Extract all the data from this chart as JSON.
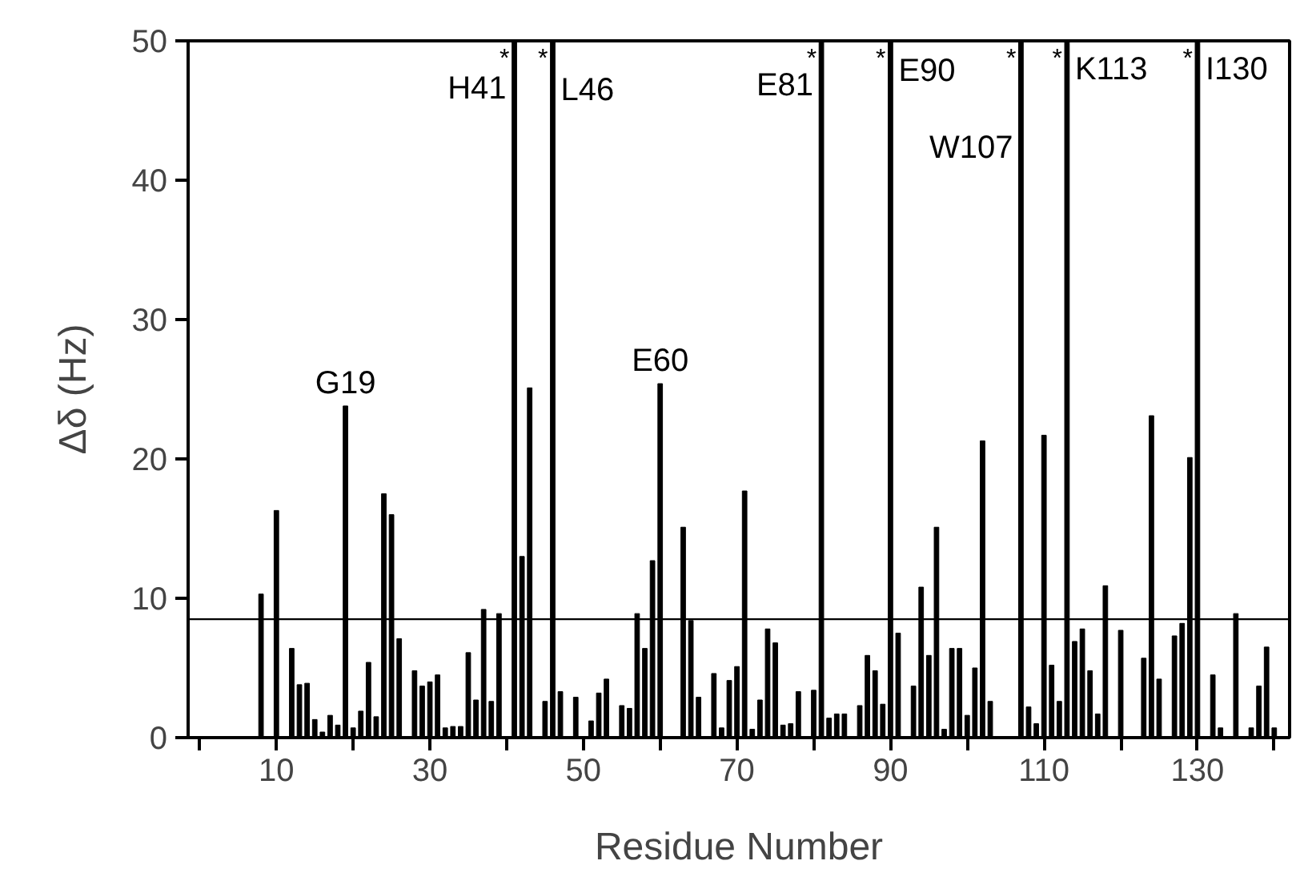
{
  "chart_data": {
    "type": "bar",
    "xlabel": "Residue Number",
    "ylabel": "Δδ (Hz)",
    "x": [
      8,
      10,
      12,
      13,
      14,
      15,
      16,
      17,
      18,
      19,
      20,
      21,
      22,
      23,
      24,
      25,
      26,
      28,
      29,
      30,
      31,
      32,
      33,
      34,
      35,
      36,
      37,
      38,
      39,
      41,
      42,
      43,
      45,
      46,
      47,
      49,
      51,
      52,
      53,
      55,
      56,
      57,
      58,
      59,
      60,
      63,
      64,
      65,
      67,
      68,
      69,
      70,
      71,
      72,
      73,
      74,
      75,
      76,
      77,
      78,
      80,
      81,
      82,
      83,
      84,
      86,
      87,
      88,
      89,
      90,
      91,
      93,
      94,
      95,
      96,
      97,
      98,
      99,
      100,
      101,
      102,
      103,
      107,
      108,
      109,
      110,
      111,
      112,
      113,
      114,
      115,
      116,
      117,
      118,
      120,
      123,
      124,
      125,
      127,
      128,
      129,
      130,
      132,
      133,
      135,
      137,
      138,
      139,
      140
    ],
    "values": [
      10.3,
      16.3,
      6.4,
      3.8,
      3.9,
      1.3,
      0.4,
      1.6,
      0.9,
      23.8,
      0.7,
      1.9,
      5.4,
      1.5,
      17.5,
      16.0,
      7.1,
      4.8,
      3.7,
      4.0,
      4.5,
      0.7,
      0.8,
      0.8,
      6.1,
      2.7,
      9.2,
      2.6,
      8.9,
      50,
      13.0,
      25.1,
      2.6,
      50,
      3.3,
      2.9,
      1.2,
      3.2,
      4.2,
      2.3,
      2.1,
      8.9,
      6.4,
      12.7,
      25.4,
      15.1,
      8.4,
      2.9,
      4.6,
      0.7,
      4.1,
      5.1,
      17.7,
      0.6,
      2.7,
      7.8,
      6.8,
      0.9,
      1.0,
      3.3,
      3.4,
      50,
      1.4,
      1.7,
      1.7,
      2.3,
      5.9,
      4.8,
      2.4,
      50,
      7.5,
      3.7,
      10.8,
      5.9,
      15.1,
      0.6,
      6.4,
      6.4,
      1.6,
      5.0,
      21.3,
      2.6,
      50,
      2.2,
      1.0,
      21.7,
      5.2,
      2.6,
      50,
      6.9,
      7.8,
      4.8,
      1.7,
      10.9,
      7.7,
      5.7,
      23.1,
      4.2,
      7.3,
      8.2,
      20.1,
      50,
      4.5,
      0.7,
      8.9,
      0.7,
      3.7,
      6.5,
      0.7
    ],
    "color": "#000000",
    "xlim": [
      -1.5,
      142
    ],
    "xticks": [
      {
        "value": 0,
        "label": null
      },
      10,
      {
        "value": 20,
        "label": null
      },
      30,
      {
        "value": 40,
        "label": null
      },
      50,
      {
        "value": 60,
        "label": null
      },
      70,
      {
        "value": 80,
        "label": null
      },
      90,
      {
        "value": 100,
        "label": null
      },
      110,
      {
        "value": 120,
        "label": null
      },
      130,
      {
        "value": 140,
        "label": null
      }
    ],
    "ylim": [
      0,
      50
    ],
    "yticks": [
      0,
      10,
      20,
      30,
      40,
      50
    ],
    "ref_lines": [
      {
        "axis": "y",
        "value": 8.5,
        "label": null
      }
    ],
    "annotations": [
      {
        "text": "G19",
        "x": 19,
        "y": 23.8
      },
      {
        "text": "E60",
        "x": 60,
        "y": 25.4
      },
      {
        "text": "H41",
        "x": 41,
        "y": 50
      },
      {
        "text": "L46",
        "x": 46,
        "y": 50
      },
      {
        "text": "E81",
        "x": 81,
        "y": 50
      },
      {
        "text": "E90",
        "x": 90,
        "y": 50
      },
      {
        "text": "W107",
        "x": 107,
        "y": 50
      },
      {
        "text": "K113",
        "x": 113,
        "y": 50
      },
      {
        "text": "I130",
        "x": 130,
        "y": 50
      },
      {
        "text": "*",
        "x": 41,
        "y": 50
      },
      {
        "text": "*",
        "x": 46,
        "y": 50
      },
      {
        "text": "*",
        "x": 81,
        "y": 50
      },
      {
        "text": "*",
        "x": 90,
        "y": 50
      },
      {
        "text": "*",
        "x": 107,
        "y": 50
      },
      {
        "text": "*",
        "x": 113,
        "y": 50
      },
      {
        "text": "*",
        "x": 130,
        "y": 50
      }
    ],
    "grid": false
  }
}
